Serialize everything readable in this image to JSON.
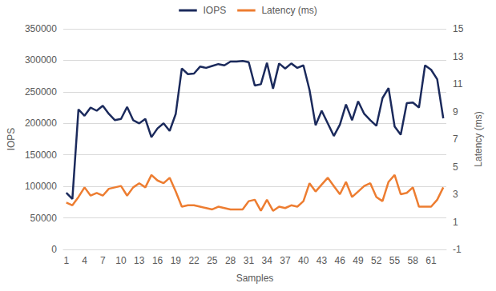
{
  "chart_data": {
    "type": "line",
    "x_label": "Samples",
    "y_label": "IOPS",
    "y2_label": "Latency (ms)",
    "categories": [
      "1",
      null,
      null,
      "4",
      null,
      null,
      "7",
      null,
      null,
      "10",
      null,
      null,
      "13",
      null,
      null,
      "16",
      null,
      null,
      "19",
      null,
      null,
      "22",
      null,
      null,
      "25",
      null,
      null,
      "28",
      null,
      null,
      "31",
      null,
      null,
      "34",
      null,
      null,
      "37",
      null,
      null,
      "40",
      null,
      null,
      "43",
      null,
      null,
      "46",
      null,
      null,
      "49",
      null,
      null,
      "52",
      null,
      null,
      "55",
      null,
      null,
      "58",
      null,
      null,
      "61",
      null,
      null
    ],
    "series": [
      {
        "name": "IOPS",
        "color": "#1b2a5c",
        "axis": "y",
        "values": [
          90000,
          80000,
          222000,
          212000,
          225000,
          220000,
          228000,
          215000,
          205000,
          207000,
          226000,
          205000,
          200000,
          207000,
          178000,
          192000,
          200000,
          188000,
          215000,
          287000,
          278000,
          279000,
          290000,
          288000,
          291000,
          294000,
          292000,
          298000,
          298000,
          299000,
          297000,
          260000,
          262000,
          296000,
          255000,
          295000,
          287000,
          295000,
          288000,
          292000,
          253000,
          197000,
          220000,
          200000,
          180000,
          198000,
          230000,
          205000,
          235000,
          215000,
          205000,
          196000,
          240000,
          256000,
          195000,
          182000,
          232000,
          233000,
          225000,
          292000,
          285000,
          270000,
          208000
        ]
      },
      {
        "name": "Latency (ms)",
        "color": "#ed7d31",
        "axis": "y2",
        "values": [
          2.4,
          2.2,
          2.8,
          3.5,
          2.9,
          3.1,
          2.9,
          3.4,
          3.5,
          3.6,
          2.9,
          3.5,
          3.8,
          3.5,
          4.4,
          4.0,
          3.8,
          4.2,
          3.2,
          2.1,
          2.2,
          2.2,
          2.1,
          2.0,
          1.9,
          2.1,
          2.0,
          1.9,
          1.9,
          1.9,
          2.5,
          2.6,
          1.8,
          2.6,
          1.8,
          2.1,
          2.0,
          2.2,
          2.1,
          2.5,
          3.8,
          3.2,
          3.7,
          4.2,
          3.6,
          3.0,
          3.9,
          2.8,
          3.2,
          3.6,
          3.8,
          2.8,
          2.5,
          3.9,
          4.4,
          3.0,
          3.1,
          3.5,
          2.1,
          2.1,
          2.1,
          2.6,
          3.5
        ]
      }
    ],
    "ylim": [
      0,
      350000
    ],
    "yticks": [
      0,
      50000,
      100000,
      150000,
      200000,
      250000,
      300000,
      350000
    ],
    "y2lim": [
      -1,
      15
    ],
    "y2ticks": [
      -1,
      1,
      3,
      5,
      7,
      9,
      11,
      13,
      15
    ],
    "grid": true,
    "legend": "top"
  }
}
